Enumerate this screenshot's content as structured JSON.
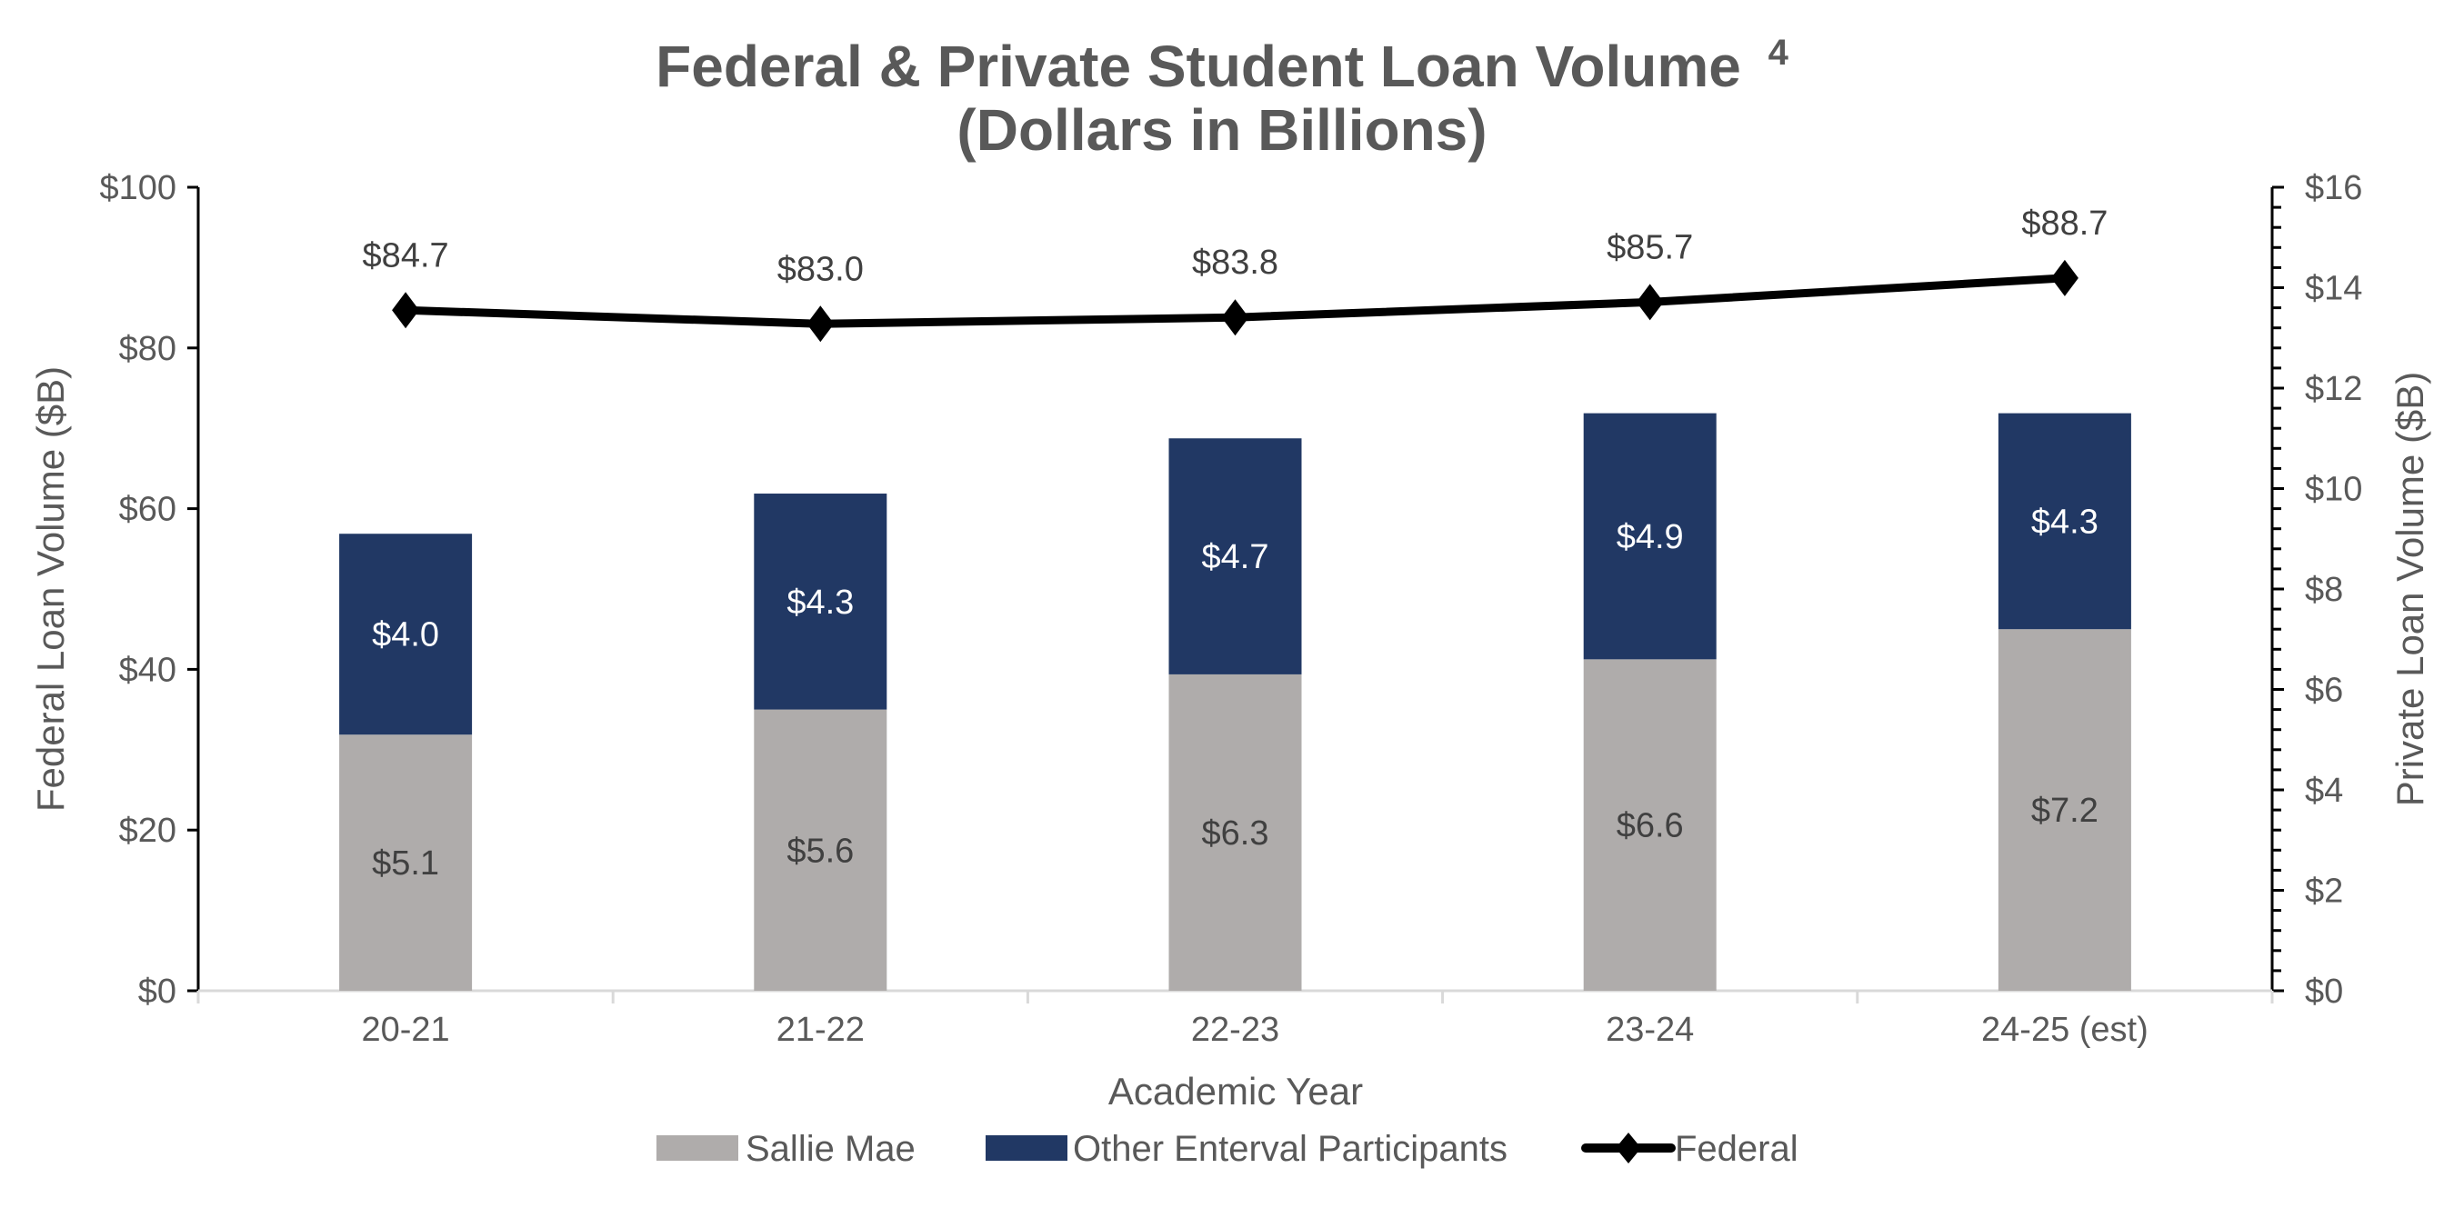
{
  "chart": {
    "title_line1": "Federal & Private Student Loan Volume",
    "title_superscript": "4",
    "title_line2": "(Dollars in Billions)",
    "left_axis_title": "Federal Loan Volume ($B)",
    "right_axis_title": "Private Loan Volume ($B)",
    "x_axis_title": "Academic Year",
    "left_ticks": [
      "$0",
      "$20",
      "$40",
      "$60",
      "$80",
      "$100"
    ],
    "right_ticks": [
      "$0",
      "$2",
      "$4",
      "$6",
      "$8",
      "$10",
      "$12",
      "$14",
      "$16"
    ],
    "legend": {
      "sallie": "Sallie Mae",
      "other": "Other Enterval Participants",
      "federal": "Federal"
    },
    "colors": {
      "sallie": "#AFACAB",
      "other": "#213864",
      "federal": "#000000",
      "text": "#595959",
      "axis_grid": "#D9D9D9"
    }
  },
  "chart_data": {
    "type": "bar",
    "subtype": "stacked bar + line (dual axis)",
    "title": "Federal & Private Student Loan Volume 4 (Dollars in Billions)",
    "xlabel": "Academic Year",
    "ylabel": "Federal Loan Volume ($B)",
    "y2label": "Private Loan Volume ($B)",
    "ylim": [
      0,
      100
    ],
    "y2lim": [
      0,
      16
    ],
    "categories": [
      "20-21",
      "21-22",
      "22-23",
      "23-24",
      "24-25 (est)"
    ],
    "series": [
      {
        "name": "Sallie Mae",
        "type": "bar",
        "axis": "right",
        "values": [
          5.1,
          5.6,
          6.3,
          6.6,
          7.2
        ],
        "labels": [
          "$5.1",
          "$5.6",
          "$6.3",
          "$6.6",
          "$7.2"
        ]
      },
      {
        "name": "Other Enterval Participants",
        "type": "bar",
        "axis": "right",
        "values": [
          4.0,
          4.3,
          4.7,
          4.9,
          4.3
        ],
        "labels": [
          "$4.0",
          "$4.3",
          "$4.7",
          "$4.9",
          "$4.3"
        ]
      },
      {
        "name": "Federal",
        "type": "line",
        "axis": "left",
        "values": [
          84.7,
          83.0,
          83.8,
          85.7,
          88.7
        ],
        "labels": [
          "$84.7",
          "$83.0",
          "$83.8",
          "$85.7",
          "$88.7"
        ]
      }
    ],
    "legend_position": "bottom",
    "grid": false
  }
}
